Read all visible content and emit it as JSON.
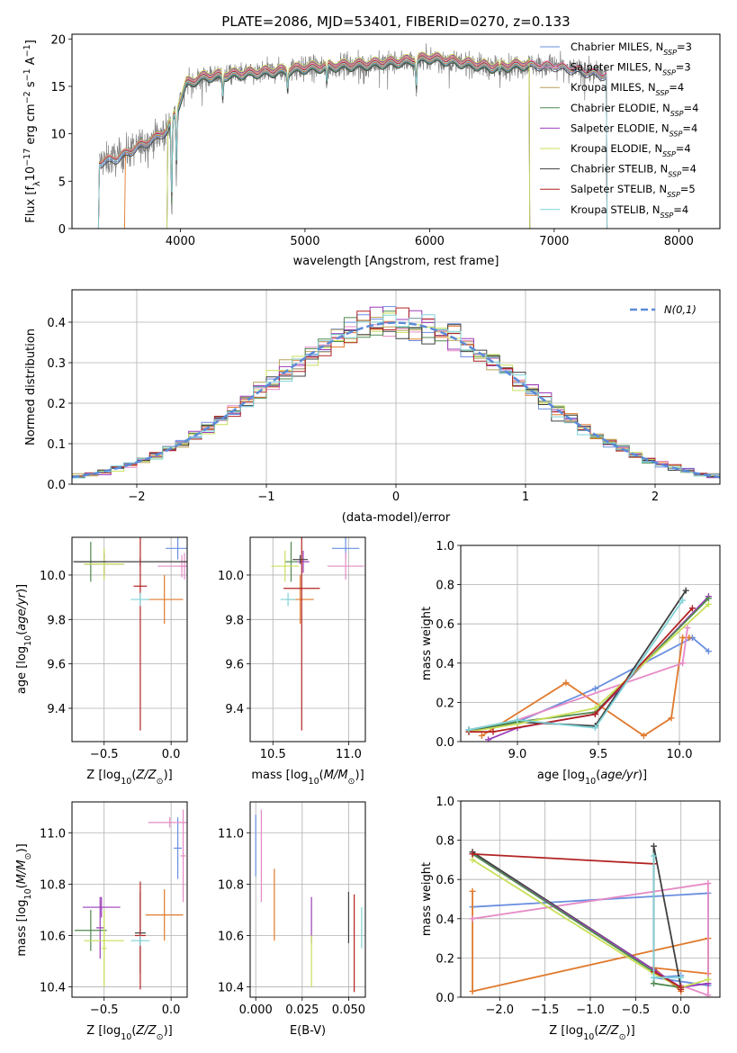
{
  "title": "PLATE=2086, MJD=53401, FIBERID=0270, z=0.133",
  "chart_data": [
    {
      "id": "spectrum",
      "type": "line",
      "xlabel": "wavelength [Angstrom, rest frame]",
      "ylabel": "Flux [f_λ 10^-17 erg cm^-2 s^-1 A^-1]",
      "xlim": [
        3130,
        8330
      ],
      "ylim": [
        0,
        20.5
      ],
      "xticks": [
        4000,
        5000,
        6000,
        7000,
        8000
      ],
      "yticks": [
        0,
        5,
        10,
        15,
        20
      ],
      "grid": false,
      "legend": "top-right",
      "data_color": "#808080",
      "continuum": [
        [
          3350,
          7.0
        ],
        [
          3500,
          7.5
        ],
        [
          3650,
          8.6
        ],
        [
          3800,
          9.6
        ],
        [
          3900,
          10.5
        ],
        [
          3980,
          12.8
        ],
        [
          4050,
          15.3
        ],
        [
          4200,
          16.0
        ],
        [
          4500,
          16.3
        ],
        [
          4800,
          16.6
        ],
        [
          5000,
          16.9
        ],
        [
          5200,
          17.1
        ],
        [
          5500,
          17.3
        ],
        [
          5800,
          17.6
        ],
        [
          6000,
          18.0
        ],
        [
          6200,
          17.6
        ],
        [
          6500,
          17.0
        ],
        [
          6800,
          17.3
        ],
        [
          7000,
          17.2
        ],
        [
          7400,
          16.2
        ]
      ],
      "drops": [
        [
          3930,
          0.5
        ],
        [
          3968,
          6.0
        ],
        [
          4340,
          13.5
        ],
        [
          4861,
          14.5
        ],
        [
          5175,
          14.8
        ],
        [
          5893,
          14.5
        ],
        [
          6563,
          16.0
        ]
      ],
      "series": [
        {
          "name": "Chabrier MILES",
          "n": "3",
          "color": "#6a8fe0",
          "x_min": 3350,
          "x_max": 7420,
          "offset": -0.2
        },
        {
          "name": "Salpeter MILES",
          "n": "3",
          "color": "#e58bc5",
          "x_min": 3350,
          "x_max": 7420,
          "offset": 0.2
        },
        {
          "name": "Kroupa MILES",
          "n": "4",
          "color": "#b8a15a",
          "x_min": 3350,
          "x_max": 6800,
          "offset": 0.3
        },
        {
          "name": "Chabrier ELODIE",
          "n": "4",
          "color": "#4f8a4f",
          "x_min": 3900,
          "x_max": 6800,
          "offset": -0.3
        },
        {
          "name": "Salpeter ELODIE",
          "n": "4",
          "color": "#9b3db8",
          "x_min": 3900,
          "x_max": 6800,
          "offset": 0.4
        },
        {
          "name": "Kroupa ELODIE",
          "n": "4",
          "color": "#c9e05a",
          "x_min": 3900,
          "x_max": 6800,
          "offset": 0.5
        },
        {
          "name": "Chabrier STELIB",
          "n": "4",
          "color": "#404040",
          "x_min": 3350,
          "x_max": 7420,
          "offset": -0.4
        },
        {
          "name": "Salpeter STELIB",
          "n": "5",
          "color": "#b22222",
          "x_min": 3350,
          "x_max": 7420,
          "offset": 0.1
        },
        {
          "name": "Kroupa STELIB",
          "n": "4",
          "color": "#7fd3d8",
          "x_min": 3350,
          "x_max": 7420,
          "offset": 0.0
        }
      ],
      "extra_series": [
        {
          "color": "#e07a2e",
          "x_min": 3560,
          "x_max": 7420,
          "offset": -0.1
        }
      ]
    },
    {
      "id": "residuals",
      "type": "line",
      "xlabel": "(data-model)/error",
      "ylabel": "Normed distribution",
      "xlim": [
        -2.5,
        2.5
      ],
      "ylim": [
        0,
        0.48
      ],
      "xticks": [
        -2,
        -1,
        0,
        1,
        2
      ],
      "yticks": [
        0.0,
        0.1,
        0.2,
        0.3,
        0.4
      ],
      "grid": true,
      "legend": "top-right",
      "legend_label": "N(0,1)",
      "gauss_color": "#5b8bd9",
      "bin_width": 0.1,
      "colors": [
        "#6a8fe0",
        "#e07a2e",
        "#e58bc5",
        "#b8a15a",
        "#4f8a4f",
        "#9b3db8",
        "#c9e05a",
        "#404040",
        "#b22222",
        "#7fd3d8"
      ]
    },
    {
      "id": "age-vs-Z",
      "type": "scatter",
      "xlabel": "Z [log10(Z/Z⊙)]",
      "ylabel": "age  [log10(age/yr)]",
      "xlim": [
        -0.74,
        0.12
      ],
      "ylim": [
        9.25,
        10.17
      ],
      "xticks": [
        -0.5,
        0.0
      ],
      "yticks": [
        9.4,
        9.6,
        9.8,
        10.0
      ],
      "grid": true,
      "points": [
        {
          "x": 0.05,
          "y": 10.12,
          "xerr": 0.09,
          "yerr": 0.05,
          "color": "#6a8fe0"
        },
        {
          "x": 0.08,
          "y": 10.04,
          "xerr": 0.18,
          "yerr": 0.05,
          "color": "#e58bc5"
        },
        {
          "x": 0.1,
          "y": 10.04,
          "xerr": 0.04,
          "yerr": 0.06,
          "color": "#e58bc5"
        },
        {
          "x": -0.05,
          "y": 9.89,
          "xerr": 0.14,
          "yerr": 0.11,
          "color": "#e07a2e"
        },
        {
          "x": -0.5,
          "y": 10.05,
          "xerr": 0.15,
          "yerr": 0.05,
          "color": "#9b3db8"
        },
        {
          "x": -0.6,
          "y": 10.06,
          "xerr": 0.12,
          "yerr": 0.09,
          "color": "#4f8a4f"
        },
        {
          "x": -0.5,
          "y": 10.05,
          "xerr": 0.15,
          "yerr": 0.07,
          "color": "#c9e05a"
        },
        {
          "x": -0.23,
          "y": 10.06,
          "xerr": 0.5,
          "yerr": 0.02,
          "color": "#404040"
        },
        {
          "x": -0.23,
          "y": 9.95,
          "xerr": 0.05,
          "yerr": 0.65,
          "color": "#b22222"
        },
        {
          "x": -0.23,
          "y": 9.89,
          "xerr": 0.07,
          "yerr": 0.03,
          "color": "#7fd3d8"
        }
      ]
    },
    {
      "id": "age-vs-mass",
      "type": "scatter",
      "xlabel": "mass [log10(M/M⊙)]",
      "ylabel": "",
      "xlim": [
        10.35,
        11.11
      ],
      "ylim": [
        9.25,
        10.17
      ],
      "xticks": [
        10.5,
        11.0
      ],
      "yticks": [
        9.4,
        9.6,
        9.8,
        10.0
      ],
      "grid": true,
      "points": [
        {
          "x": 10.98,
          "y": 10.12,
          "xerr": 0.09,
          "yerr": 0.05,
          "color": "#6a8fe0"
        },
        {
          "x": 10.98,
          "y": 10.04,
          "xerr": 0.12,
          "yerr": 0.06,
          "color": "#e58bc5"
        },
        {
          "x": 10.68,
          "y": 9.89,
          "xerr": 0.09,
          "yerr": 0.11,
          "color": "#e07a2e"
        },
        {
          "x": 10.7,
          "y": 10.06,
          "xerr": 0.04,
          "yerr": 0.05,
          "color": "#9b3db8"
        },
        {
          "x": 10.62,
          "y": 10.06,
          "xerr": 0.04,
          "yerr": 0.09,
          "color": "#4f8a4f"
        },
        {
          "x": 10.58,
          "y": 10.04,
          "xerr": 0.09,
          "yerr": 0.07,
          "color": "#c9e05a"
        },
        {
          "x": 10.68,
          "y": 10.07,
          "xerr": 0.05,
          "yerr": 0.02,
          "color": "#404040"
        },
        {
          "x": 10.69,
          "y": 9.94,
          "xerr": 0.12,
          "yerr": 0.64,
          "color": "#b22222"
        },
        {
          "x": 10.6,
          "y": 9.89,
          "xerr": 0.05,
          "yerr": 0.03,
          "color": "#7fd3d8"
        }
      ]
    },
    {
      "id": "weight-vs-age",
      "type": "line",
      "xlabel": "age  [log10(age/yr)]",
      "ylabel": "mass weight",
      "xlim": [
        8.65,
        10.25
      ],
      "ylim": [
        0,
        1.0
      ],
      "xticks": [
        9.0,
        9.5,
        10.0
      ],
      "yticks": [
        0.0,
        0.2,
        0.4,
        0.6,
        0.8,
        1.0
      ],
      "grid": true,
      "series": [
        {
          "color": "#6a8fe0",
          "x": [
            8.7,
            9.0,
            9.48,
            10.08,
            10.18
          ],
          "y": [
            0.06,
            0.1,
            0.27,
            0.53,
            0.46
          ]
        },
        {
          "color": "#e07a2e",
          "x": [
            8.78,
            9.3,
            9.78,
            9.95,
            10.02,
            10.06
          ],
          "y": [
            0.03,
            0.3,
            0.03,
            0.12,
            0.53,
            0.53
          ]
        },
        {
          "color": "#e58bc5",
          "x": [
            8.7,
            9.0,
            10.02,
            10.05
          ],
          "y": [
            0.06,
            0.11,
            0.4,
            0.58
          ]
        },
        {
          "color": "#404040",
          "x": [
            8.7,
            9.0,
            9.48,
            10.04
          ],
          "y": [
            0.05,
            0.1,
            0.08,
            0.77
          ]
        },
        {
          "color": "#9b3db8",
          "x": [
            8.82,
            9.0,
            9.48,
            10.18
          ],
          "y": [
            0.01,
            0.07,
            0.14,
            0.74
          ]
        },
        {
          "color": "#4f8a4f",
          "x": [
            8.7,
            9.0,
            9.48,
            10.18
          ],
          "y": [
            0.06,
            0.1,
            0.15,
            0.73
          ]
        },
        {
          "color": "#c9e05a",
          "x": [
            8.7,
            9.0,
            9.48,
            10.18
          ],
          "y": [
            0.05,
            0.09,
            0.17,
            0.7
          ]
        },
        {
          "color": "#b22222",
          "x": [
            8.7,
            8.85,
            9.48,
            10.08
          ],
          "y": [
            0.05,
            0.05,
            0.14,
            0.68
          ]
        },
        {
          "color": "#7fd3d8",
          "x": [
            8.7,
            9.0,
            9.48,
            10.02
          ],
          "y": [
            0.06,
            0.11,
            0.07,
            0.72
          ]
        }
      ]
    },
    {
      "id": "mass-vs-Z",
      "type": "scatter",
      "xlabel": "Z [log10(Z/Z⊙)]",
      "ylabel": "mass [log10(M/M⊙)]",
      "xlim": [
        -0.74,
        0.12
      ],
      "ylim": [
        10.36,
        11.12
      ],
      "xticks": [
        -0.5,
        0.0
      ],
      "yticks": [
        10.4,
        10.6,
        10.8,
        11.0
      ],
      "grid": true,
      "points": [
        {
          "x": 0.05,
          "y": 10.94,
          "xerr": 0.03,
          "yerr": 0.12,
          "color": "#6a8fe0"
        },
        {
          "x": -0.01,
          "y": 11.04,
          "xerr": 0.16,
          "yerr": 0.02,
          "color": "#e58bc5"
        },
        {
          "x": 0.09,
          "y": 10.91,
          "xerr": 0.02,
          "yerr": 0.18,
          "color": "#e58bc5"
        },
        {
          "x": -0.05,
          "y": 10.68,
          "xerr": 0.14,
          "yerr": 0.1,
          "color": "#e07a2e"
        },
        {
          "x": -0.52,
          "y": 10.71,
          "xerr": 0.14,
          "yerr": 0.04,
          "color": "#9b3db8"
        },
        {
          "x": -0.53,
          "y": 10.63,
          "xerr": 0.03,
          "yerr": 0.12,
          "color": "#9b3db8"
        },
        {
          "x": -0.6,
          "y": 10.62,
          "xerr": 0.12,
          "yerr": 0.08,
          "color": "#4f8a4f"
        },
        {
          "x": -0.5,
          "y": 10.58,
          "xerr": 0.15,
          "yerr": 0.04,
          "color": "#c9e05a"
        },
        {
          "x": -0.5,
          "y": 10.55,
          "xerr": 0.02,
          "yerr": 0.15,
          "color": "#c9e05a"
        },
        {
          "x": -0.23,
          "y": 10.61,
          "xerr": 0.04,
          "yerr": 0.16,
          "color": "#404040"
        },
        {
          "x": -0.23,
          "y": 10.6,
          "xerr": 0.04,
          "yerr": 0.21,
          "color": "#b22222"
        },
        {
          "x": -0.23,
          "y": 10.58,
          "xerr": 0.07,
          "yerr": 0.02,
          "color": "#7fd3d8"
        }
      ]
    },
    {
      "id": "mass-vs-ebv",
      "type": "scatter",
      "xlabel": "E(B-V)",
      "ylabel": "",
      "xlim": [
        -0.003,
        0.059
      ],
      "ylim": [
        10.36,
        11.12
      ],
      "xticks": [
        0.0,
        0.025,
        0.05
      ],
      "yticks": [
        10.4,
        10.6,
        10.8,
        11.0
      ],
      "grid": true,
      "points": [
        {
          "x": 0.0,
          "y": 10.95,
          "xerr": 0,
          "yerr": 0.12,
          "color": "#6a8fe0"
        },
        {
          "x": 0.003,
          "y": 10.91,
          "xerr": 0,
          "yerr": 0.18,
          "color": "#e58bc5"
        },
        {
          "x": 0.01,
          "y": 10.72,
          "xerr": 0,
          "yerr": 0.14,
          "color": "#e07a2e"
        },
        {
          "x": 0.03,
          "y": 10.66,
          "xerr": 0,
          "yerr": 0.09,
          "color": "#9b3db8"
        },
        {
          "x": 0.03,
          "y": 10.5,
          "xerr": 0,
          "yerr": 0.1,
          "color": "#c9e05a"
        },
        {
          "x": 0.05,
          "y": 10.67,
          "xerr": 0,
          "yerr": 0.1,
          "color": "#404040"
        },
        {
          "x": 0.053,
          "y": 10.57,
          "xerr": 0,
          "yerr": 0.19,
          "color": "#b22222"
        },
        {
          "x": 0.057,
          "y": 10.63,
          "xerr": 0,
          "yerr": 0.08,
          "color": "#7fd3d8"
        }
      ]
    },
    {
      "id": "weight-vs-Z",
      "type": "line",
      "xlabel": "Z [log10(Z/Z⊙)]",
      "ylabel": "mass weight",
      "xlim": [
        -2.43,
        0.43
      ],
      "ylim": [
        0,
        1.0
      ],
      "xticks": [
        -2.0,
        -1.5,
        -1.0,
        -0.5,
        0.0
      ],
      "yticks": [
        0.0,
        0.2,
        0.4,
        0.6,
        0.8,
        1.0
      ],
      "grid": true,
      "series": [
        {
          "color": "#6a8fe0",
          "x": [
            -2.3,
            0.3,
            0.3,
            -0.3,
            0.0
          ],
          "y": [
            0.46,
            0.53,
            0.06,
            0.1,
            0.11
          ]
        },
        {
          "color": "#e07a2e",
          "x": [
            -2.3,
            -2.3,
            0.3,
            0.3,
            -0.3,
            0.0
          ],
          "y": [
            0.54,
            0.03,
            0.3,
            0.12,
            0.15,
            0.03
          ]
        },
        {
          "color": "#e58bc5",
          "x": [
            -2.3,
            0.3,
            0.3,
            0.0
          ],
          "y": [
            0.4,
            0.58,
            0.01,
            0.06
          ]
        },
        {
          "color": "#404040",
          "x": [
            -2.3,
            -0.3,
            -0.3,
            0.0
          ],
          "y": [
            0.74,
            0.14,
            0.77,
            0.05
          ]
        },
        {
          "color": "#9b3db8",
          "x": [
            -2.3,
            -0.3,
            0.0,
            0.3
          ],
          "y": [
            0.73,
            0.14,
            0.05,
            0.07
          ]
        },
        {
          "color": "#4f8a4f",
          "x": [
            -2.3,
            -0.3,
            -0.3,
            0.0
          ],
          "y": [
            0.73,
            0.13,
            0.07,
            0.05
          ]
        },
        {
          "color": "#c9e05a",
          "x": [
            -2.3,
            -0.3,
            0.0,
            0.3
          ],
          "y": [
            0.7,
            0.12,
            0.05,
            0.09
          ]
        },
        {
          "color": "#b22222",
          "x": [
            -2.3,
            -0.3,
            -0.3,
            0.0,
            0.0
          ],
          "y": [
            0.73,
            0.68,
            0.13,
            0.05,
            0.04
          ]
        },
        {
          "color": "#7fd3d8",
          "x": [
            -0.3,
            -0.3,
            0.0
          ],
          "y": [
            0.72,
            0.1,
            0.1
          ]
        }
      ]
    }
  ]
}
